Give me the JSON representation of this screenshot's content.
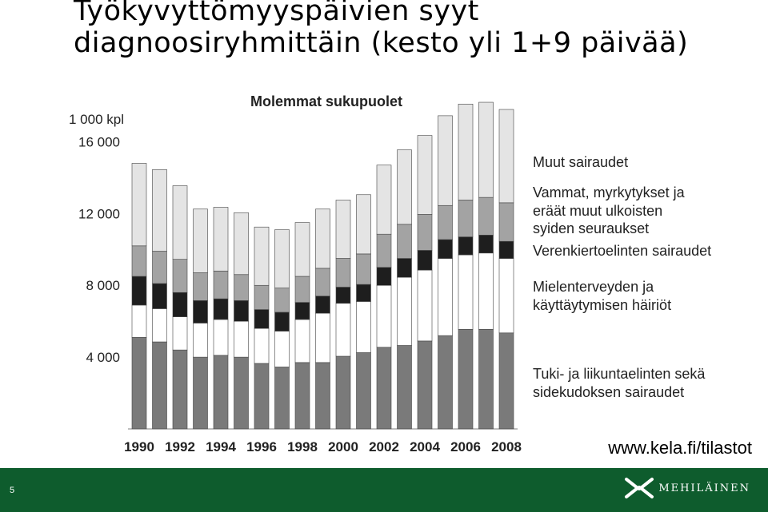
{
  "slide": {
    "title_line1": "Työkyvyttömyyspäivien syyt",
    "title_line2": "diagnoosiryhmittäin (kesto yli 1+9 päivää)",
    "source": "www.kela.fi/tilastot",
    "page_number": "5",
    "logo_text": "MEHILÄINEN"
  },
  "chart_data": {
    "type": "bar",
    "stacked": true,
    "title": "Molemmat sukupuolet",
    "ylabel": "1 000 kpl",
    "ylim": [
      0,
      17000
    ],
    "yticks": [
      4000,
      8000,
      12000,
      16000
    ],
    "ytick_labels": [
      "4 000",
      "8 000",
      "12 000",
      "16 000"
    ],
    "grid": false,
    "legend_position": "right",
    "categories": [
      "1990",
      "1991",
      "1992",
      "1993",
      "1994",
      "1995",
      "1996",
      "1997",
      "1998",
      "1999",
      "2000",
      "2001",
      "2002",
      "2003",
      "2004",
      "2005",
      "2006",
      "2007",
      "2008"
    ],
    "xtick_labels": [
      "1990",
      "",
      "1992",
      "",
      "1994",
      "",
      "1996",
      "",
      "1998",
      "",
      "2000",
      "",
      "2002",
      "",
      "2004",
      "",
      "2006",
      "",
      "2008"
    ],
    "series": [
      {
        "name": "Tuki- ja liikuntaelinten sekä sidekudoksen sairaudet",
        "color": "#7a7a7a",
        "values": [
          5100,
          4850,
          4400,
          4000,
          4100,
          4000,
          3650,
          3450,
          3700,
          3700,
          4050,
          4250,
          4550,
          4650,
          4900,
          5200,
          5550,
          5550,
          5350
        ]
      },
      {
        "name": "Mielenterveyden ja käyttäytymisen häiriöt",
        "color": "#ffffff",
        "values": [
          1800,
          1850,
          1850,
          1900,
          2000,
          2000,
          1950,
          2000,
          2400,
          2750,
          2950,
          2850,
          3450,
          3800,
          3950,
          4300,
          4150,
          4250,
          4150
        ]
      },
      {
        "name": "Verenkiertoelinten sairaudet",
        "color": "#1e1e1e",
        "values": [
          1600,
          1400,
          1350,
          1250,
          1150,
          1150,
          1050,
          1050,
          950,
          950,
          900,
          950,
          1000,
          1050,
          1100,
          1050,
          1000,
          1000,
          950
        ]
      },
      {
        "name": "Vammat, myrkytykset ja eräät muut ulkoisten syiden seuraukset",
        "color": "#a3a3a3",
        "values": [
          1700,
          1800,
          1850,
          1550,
          1550,
          1450,
          1350,
          1350,
          1450,
          1550,
          1600,
          1700,
          1850,
          1900,
          2000,
          1900,
          2050,
          2100,
          2150
        ]
      },
      {
        "name": "Muut sairaudet",
        "color": "#e4e4e4",
        "values": [
          4600,
          4550,
          4100,
          3550,
          3550,
          3450,
          3250,
          3250,
          3000,
          3300,
          3250,
          3300,
          3850,
          4150,
          4400,
          5000,
          5350,
          5300,
          5200
        ]
      }
    ]
  }
}
